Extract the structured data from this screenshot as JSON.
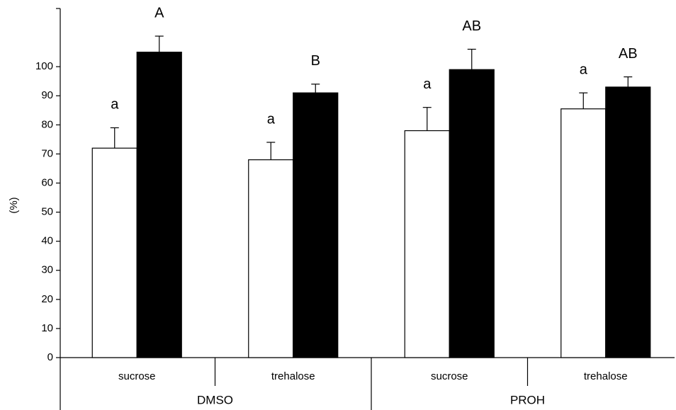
{
  "chart_data": {
    "type": "bar",
    "y_label": "(%)",
    "categories": [
      "sucrose",
      "trehalose",
      "sucrose",
      "trehalose"
    ],
    "groups": [
      "DMSO",
      "PROH"
    ],
    "series": [
      {
        "color": "#ffffff",
        "values": [
          72,
          68,
          78,
          85.5
        ],
        "errors": [
          7,
          6,
          8,
          5.5
        ],
        "labels": [
          "a",
          "a",
          "a",
          "a"
        ]
      },
      {
        "color": "#000000",
        "values": [
          105,
          91,
          99,
          93
        ],
        "errors": [
          5.5,
          3,
          7,
          3.5
        ],
        "labels": [
          "A",
          "B",
          "AB",
          "AB"
        ]
      }
    ],
    "ylim": [
      0,
      120
    ],
    "yticks": [
      0,
      10,
      20,
      30,
      40,
      50,
      60,
      70,
      80,
      90,
      100
    ]
  }
}
